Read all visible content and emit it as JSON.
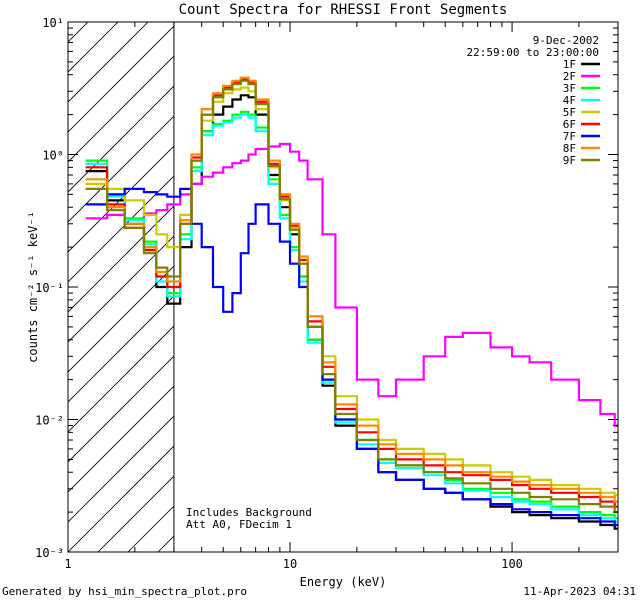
{
  "chart_data": {
    "type": "line",
    "title": "Count Spectra for RHESSI Front Segments",
    "xlabel": "Energy (keV)",
    "ylabel": "counts cm⁻² s⁻¹ keV⁻¹",
    "xscale": "log",
    "yscale": "log",
    "xlim": [
      1,
      300
    ],
    "ylim": [
      0.001,
      10
    ],
    "x_tick_labels": [
      {
        "value": 1,
        "label": "1"
      },
      {
        "value": 10,
        "label": "10"
      },
      {
        "value": 100,
        "label": "100"
      }
    ],
    "y_tick_labels": [
      {
        "value": 10,
        "label": "10¹"
      },
      {
        "value": 1,
        "label": "10⁰"
      },
      {
        "value": 0.1,
        "label": "10⁻¹"
      },
      {
        "value": 0.01,
        "label": "10⁻²"
      },
      {
        "value": 0.001,
        "label": "10⁻³"
      }
    ],
    "hatched_region": {
      "x_from": 1,
      "x_to": 3
    },
    "date": "9-Dec-2002",
    "time_range": "22:59:00 to 23:00:00",
    "annotations": [
      "Includes Background",
      "Att A0, FDecim 1"
    ],
    "legend_position": "top-right",
    "series": [
      {
        "name": "1F",
        "color": "#000000",
        "x": [
          1.2,
          1.5,
          1.8,
          2.2,
          2.5,
          2.8,
          3.2,
          3.6,
          4.0,
          4.5,
          5.0,
          5.5,
          6.0,
          6.5,
          7.0,
          8.0,
          9.0,
          10.0,
          11.0,
          12.0,
          14.0,
          16.0,
          20.0,
          25.0,
          30.0,
          40.0,
          50.0,
          60.0,
          80.0,
          100.0,
          120.0,
          150.0,
          200.0,
          250.0,
          290.0
        ],
        "y": [
          0.75,
          0.45,
          0.3,
          0.2,
          0.1,
          0.075,
          0.2,
          0.6,
          1.5,
          2.0,
          2.3,
          2.6,
          2.8,
          2.7,
          2.0,
          0.7,
          0.4,
          0.25,
          0.12,
          0.04,
          0.018,
          0.009,
          0.006,
          0.004,
          0.0035,
          0.003,
          0.0028,
          0.0025,
          0.0022,
          0.002,
          0.0019,
          0.0018,
          0.0017,
          0.0016,
          0.0015
        ]
      },
      {
        "name": "2F",
        "color": "#ff00ff",
        "x": [
          1.2,
          1.5,
          1.8,
          2.2,
          2.5,
          2.8,
          3.2,
          3.6,
          4.0,
          4.5,
          5.0,
          5.5,
          6.0,
          6.5,
          7.0,
          8.0,
          9.0,
          10.0,
          11.0,
          12.0,
          14.0,
          16.0,
          20.0,
          25.0,
          30.0,
          40.0,
          50.0,
          60.0,
          80.0,
          100.0,
          120.0,
          150.0,
          200.0,
          250.0,
          290.0
        ],
        "y": [
          0.33,
          0.35,
          0.32,
          0.36,
          0.38,
          0.42,
          0.5,
          0.6,
          0.68,
          0.73,
          0.8,
          0.86,
          0.9,
          1.0,
          1.1,
          1.15,
          1.2,
          1.05,
          0.9,
          0.65,
          0.25,
          0.07,
          0.02,
          0.015,
          0.02,
          0.03,
          0.042,
          0.045,
          0.035,
          0.03,
          0.027,
          0.02,
          0.014,
          0.011,
          0.009
        ]
      },
      {
        "name": "3F",
        "color": "#00ff00",
        "x": [
          1.2,
          1.5,
          1.8,
          2.2,
          2.5,
          2.8,
          3.2,
          3.6,
          4.0,
          4.5,
          5.0,
          5.5,
          6.0,
          6.5,
          7.0,
          8.0,
          9.0,
          10.0,
          11.0,
          12.0,
          14.0,
          16.0,
          20.0,
          25.0,
          30.0,
          40.0,
          50.0,
          60.0,
          80.0,
          100.0,
          120.0,
          150.0,
          200.0,
          250.0,
          290.0
        ],
        "y": [
          0.9,
          0.5,
          0.33,
          0.22,
          0.12,
          0.09,
          0.25,
          0.8,
          1.5,
          1.7,
          1.8,
          2.0,
          2.1,
          2.0,
          1.6,
          0.65,
          0.35,
          0.2,
          0.12,
          0.04,
          0.02,
          0.01,
          0.007,
          0.005,
          0.0045,
          0.004,
          0.0035,
          0.003,
          0.0028,
          0.0025,
          0.0024,
          0.0022,
          0.002,
          0.0019,
          0.0018
        ]
      },
      {
        "name": "4F",
        "color": "#00ffff",
        "x": [
          1.2,
          1.5,
          1.8,
          2.2,
          2.5,
          2.8,
          3.2,
          3.6,
          4.0,
          4.5,
          5.0,
          5.5,
          6.0,
          6.5,
          7.0,
          8.0,
          9.0,
          10.0,
          11.0,
          12.0,
          14.0,
          16.0,
          20.0,
          25.0,
          30.0,
          40.0,
          50.0,
          60.0,
          80.0,
          100.0,
          120.0,
          150.0,
          200.0,
          250.0,
          290.0
        ],
        "y": [
          0.85,
          0.48,
          0.32,
          0.21,
          0.11,
          0.085,
          0.23,
          0.75,
          1.4,
          1.65,
          1.75,
          1.9,
          2.0,
          1.9,
          1.5,
          0.6,
          0.33,
          0.19,
          0.11,
          0.038,
          0.019,
          0.0095,
          0.0065,
          0.0047,
          0.0043,
          0.0038,
          0.0033,
          0.0029,
          0.0026,
          0.0024,
          0.0023,
          0.0021,
          0.0019,
          0.0018,
          0.0017
        ]
      },
      {
        "name": "5F",
        "color": "#cccc00",
        "x": [
          1.2,
          1.5,
          1.8,
          2.2,
          2.5,
          2.8,
          3.2,
          3.6,
          4.0,
          4.5,
          5.0,
          5.5,
          6.0,
          6.5,
          7.0,
          8.0,
          9.0,
          10.0,
          11.0,
          12.0,
          14.0,
          16.0,
          20.0,
          25.0,
          30.0,
          40.0,
          50.0,
          60.0,
          80.0,
          100.0,
          120.0,
          150.0,
          200.0,
          250.0,
          290.0
        ],
        "y": [
          0.6,
          0.55,
          0.45,
          0.35,
          0.25,
          0.2,
          0.35,
          0.9,
          1.8,
          2.5,
          2.9,
          3.1,
          3.2,
          3.0,
          2.2,
          0.8,
          0.45,
          0.28,
          0.15,
          0.06,
          0.03,
          0.015,
          0.01,
          0.007,
          0.006,
          0.0055,
          0.005,
          0.0045,
          0.004,
          0.0037,
          0.0035,
          0.0032,
          0.003,
          0.0028,
          0.0027
        ]
      },
      {
        "name": "6F",
        "color": "#ff0000",
        "x": [
          1.2,
          1.5,
          1.8,
          2.2,
          2.5,
          2.8,
          3.2,
          3.6,
          4.0,
          4.5,
          5.0,
          5.5,
          6.0,
          6.5,
          7.0,
          8.0,
          9.0,
          10.0,
          11.0,
          12.0,
          14.0,
          16.0,
          20.0,
          25.0,
          30.0,
          40.0,
          50.0,
          60.0,
          80.0,
          100.0,
          120.0,
          150.0,
          200.0,
          250.0,
          290.0
        ],
        "y": [
          0.8,
          0.42,
          0.28,
          0.19,
          0.12,
          0.1,
          0.3,
          0.95,
          2.0,
          2.8,
          3.2,
          3.5,
          3.7,
          3.5,
          2.5,
          0.85,
          0.48,
          0.29,
          0.16,
          0.055,
          0.025,
          0.012,
          0.008,
          0.006,
          0.005,
          0.0045,
          0.004,
          0.0038,
          0.0035,
          0.0032,
          0.003,
          0.0028,
          0.0026,
          0.0024,
          0.0022
        ]
      },
      {
        "name": "7F",
        "color": "#0000ff",
        "x": [
          1.2,
          1.5,
          1.8,
          2.2,
          2.5,
          2.8,
          3.2,
          3.6,
          4.0,
          4.5,
          5.0,
          5.5,
          6.0,
          6.5,
          7.0,
          8.0,
          9.0,
          10.0,
          11.0,
          12.0,
          14.0,
          16.0,
          20.0,
          25.0,
          30.0,
          40.0,
          50.0,
          60.0,
          80.0,
          100.0,
          120.0,
          150.0,
          200.0,
          250.0,
          290.0
        ],
        "y": [
          0.42,
          0.5,
          0.55,
          0.52,
          0.5,
          0.48,
          0.55,
          0.3,
          0.2,
          0.1,
          0.065,
          0.09,
          0.18,
          0.3,
          0.42,
          0.3,
          0.22,
          0.15,
          0.1,
          0.05,
          0.02,
          0.01,
          0.006,
          0.004,
          0.0035,
          0.003,
          0.0028,
          0.0025,
          0.0023,
          0.0021,
          0.002,
          0.0019,
          0.0018,
          0.0017,
          0.0016
        ]
      },
      {
        "name": "8F",
        "color": "#ff8800",
        "x": [
          1.2,
          1.5,
          1.8,
          2.2,
          2.5,
          2.8,
          3.2,
          3.6,
          4.0,
          4.5,
          5.0,
          5.5,
          6.0,
          6.5,
          7.0,
          8.0,
          9.0,
          10.0,
          11.0,
          12.0,
          14.0,
          16.0,
          20.0,
          25.0,
          30.0,
          40.0,
          50.0,
          60.0,
          80.0,
          100.0,
          120.0,
          150.0,
          200.0,
          250.0,
          290.0
        ],
        "y": [
          0.65,
          0.4,
          0.3,
          0.2,
          0.13,
          0.11,
          0.32,
          1.0,
          2.2,
          2.9,
          3.3,
          3.6,
          3.8,
          3.6,
          2.6,
          0.9,
          0.5,
          0.3,
          0.17,
          0.06,
          0.027,
          0.013,
          0.009,
          0.0065,
          0.0055,
          0.005,
          0.0045,
          0.004,
          0.0037,
          0.0034,
          0.0032,
          0.003,
          0.0028,
          0.0026,
          0.0024
        ]
      },
      {
        "name": "9F",
        "color": "#808000",
        "x": [
          1.2,
          1.5,
          1.8,
          2.2,
          2.5,
          2.8,
          3.2,
          3.6,
          4.0,
          4.5,
          5.0,
          5.5,
          6.0,
          6.5,
          7.0,
          8.0,
          9.0,
          10.0,
          11.0,
          12.0,
          14.0,
          16.0,
          20.0,
          25.0,
          30.0,
          40.0,
          50.0,
          60.0,
          80.0,
          100.0,
          120.0,
          150.0,
          200.0,
          250.0,
          290.0
        ],
        "y": [
          0.55,
          0.38,
          0.28,
          0.18,
          0.14,
          0.12,
          0.3,
          0.9,
          2.0,
          2.7,
          3.1,
          3.4,
          3.6,
          3.4,
          2.4,
          0.82,
          0.46,
          0.27,
          0.15,
          0.05,
          0.022,
          0.011,
          0.007,
          0.005,
          0.0045,
          0.004,
          0.0036,
          0.0033,
          0.003,
          0.0028,
          0.0026,
          0.0025,
          0.0023,
          0.0022,
          0.002
        ]
      }
    ]
  },
  "footer": {
    "generated_by": "Generated by hsi_min_spectra_plot.pro",
    "timestamp": "11-Apr-2023 04:31"
  }
}
